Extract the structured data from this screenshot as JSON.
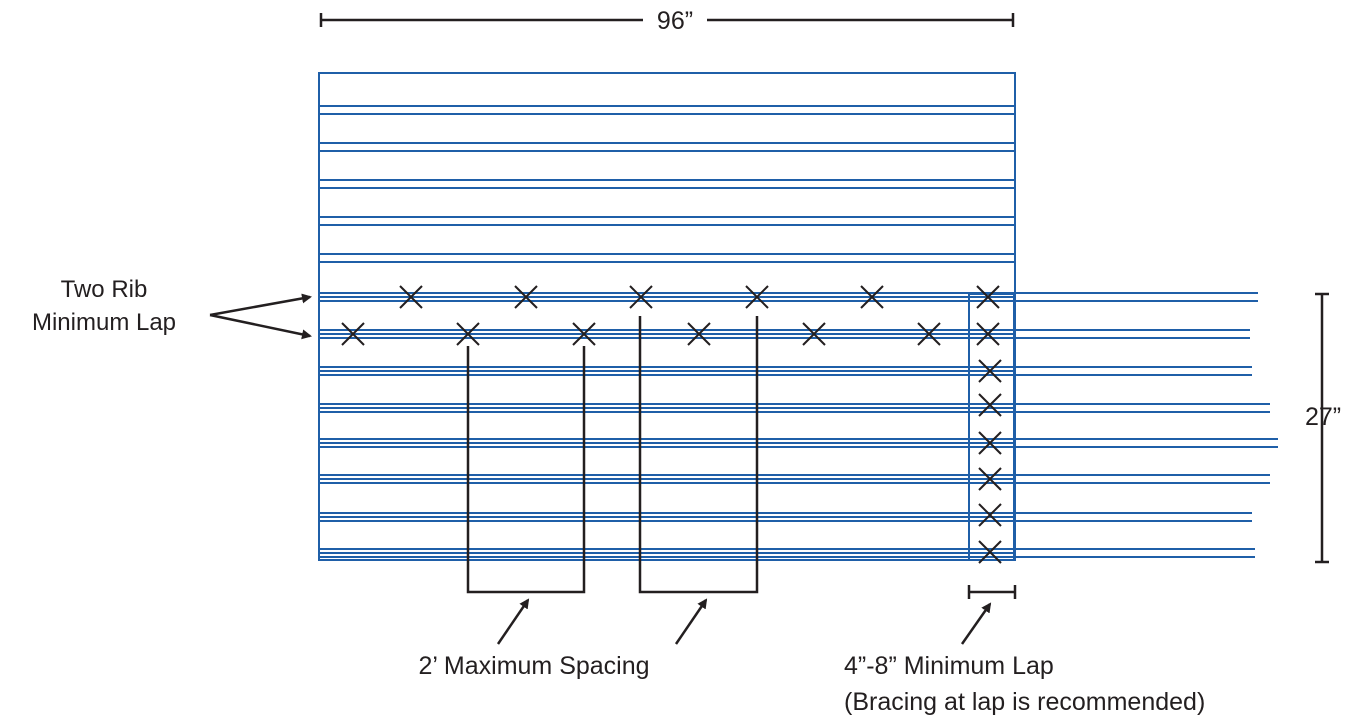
{
  "labels": {
    "width_dimension": "96”",
    "height_dimension": "27”",
    "rib_lap_line1": "Two Rib",
    "rib_lap_line2": "Minimum Lap",
    "spacing": "2’ Maximum Spacing",
    "end_lap_line1": "4”-8” Minimum Lap",
    "end_lap_line2": "(Bracing at lap is recommended)"
  },
  "colors": {
    "panel_rib": "#1f5fa8",
    "annotation": "#231f20",
    "background": "#ffffff"
  },
  "icons": {
    "fastener": "x-mark",
    "pointer": "arrow"
  }
}
